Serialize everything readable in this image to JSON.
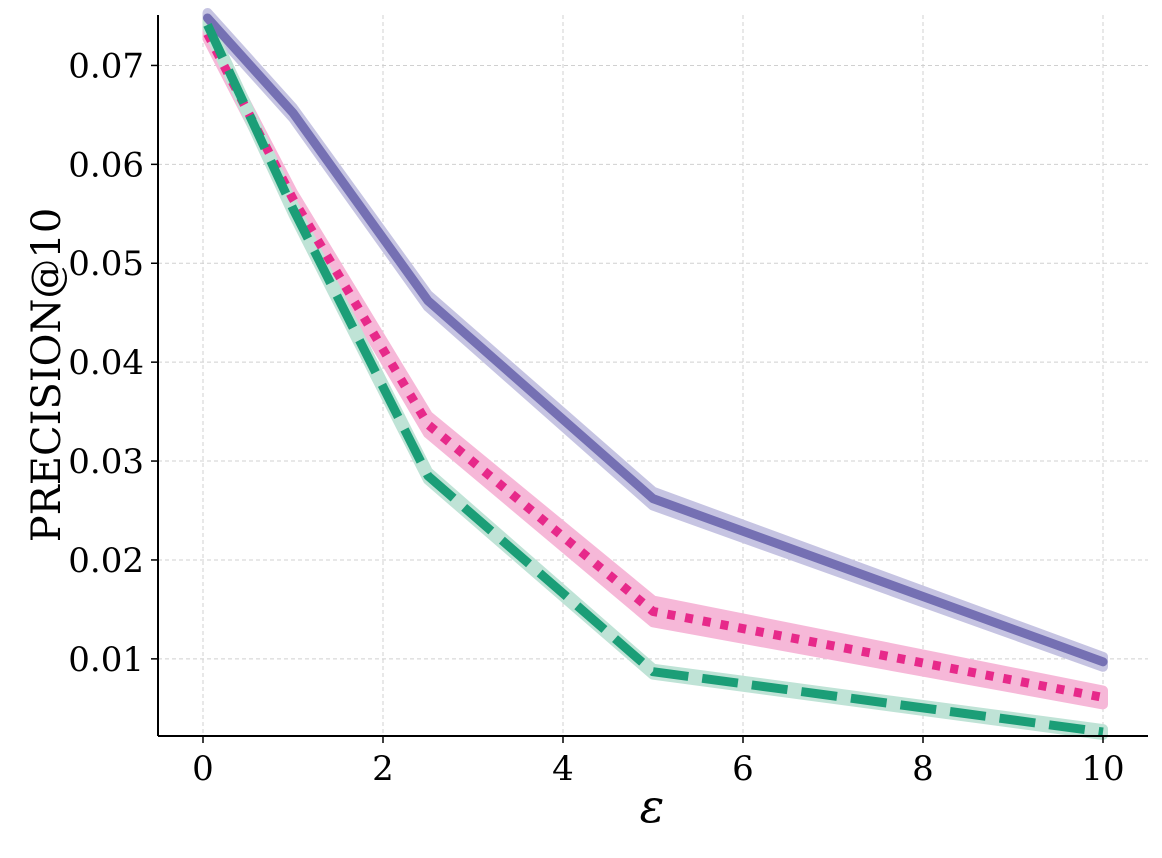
{
  "chart_data": {
    "type": "line",
    "xlabel": "ε",
    "ylabel": "PRECISION@10",
    "xlim": [
      -0.5,
      10.5
    ],
    "ylim": [
      0.0022,
      0.0751
    ],
    "xticks": [
      0,
      2,
      4,
      6,
      8,
      10
    ],
    "yticks": [
      0.01,
      0.02,
      0.03,
      0.04,
      0.05,
      0.06,
      0.07
    ],
    "xtick_labels": [
      "0",
      "2",
      "4",
      "6",
      "8",
      "10"
    ],
    "ytick_labels": [
      "0.01",
      "0.02",
      "0.03",
      "0.04",
      "0.05",
      "0.06",
      "0.07"
    ],
    "grid": true,
    "x": [
      0.05,
      1,
      2.5,
      5,
      10
    ],
    "series": [
      {
        "values": [
          0.0748,
          0.0652,
          0.0462,
          0.0262,
          0.0097
        ],
        "band": [
          0.0005,
          0.0005,
          0.0006,
          0.0007,
          0.0005
        ],
        "color": "#7570b3",
        "band_color": "#c6c4e2",
        "style": "solid"
      },
      {
        "values": [
          0.0732,
          0.0565,
          0.0337,
          0.0148,
          0.0061
        ],
        "band": [
          0.0005,
          0.0006,
          0.0009,
          0.0011,
          0.0007
        ],
        "color": "#e7298a",
        "band_color": "#f6b8d8",
        "style": "dotted"
      },
      {
        "values": [
          0.0741,
          0.0555,
          0.0285,
          0.0087,
          0.0026
        ],
        "band": [
          0.0004,
          0.0005,
          0.0004,
          0.0003,
          0.0003
        ],
        "color": "#1b9e77",
        "band_color": "#bfe3d6",
        "style": "dashed"
      }
    ]
  }
}
